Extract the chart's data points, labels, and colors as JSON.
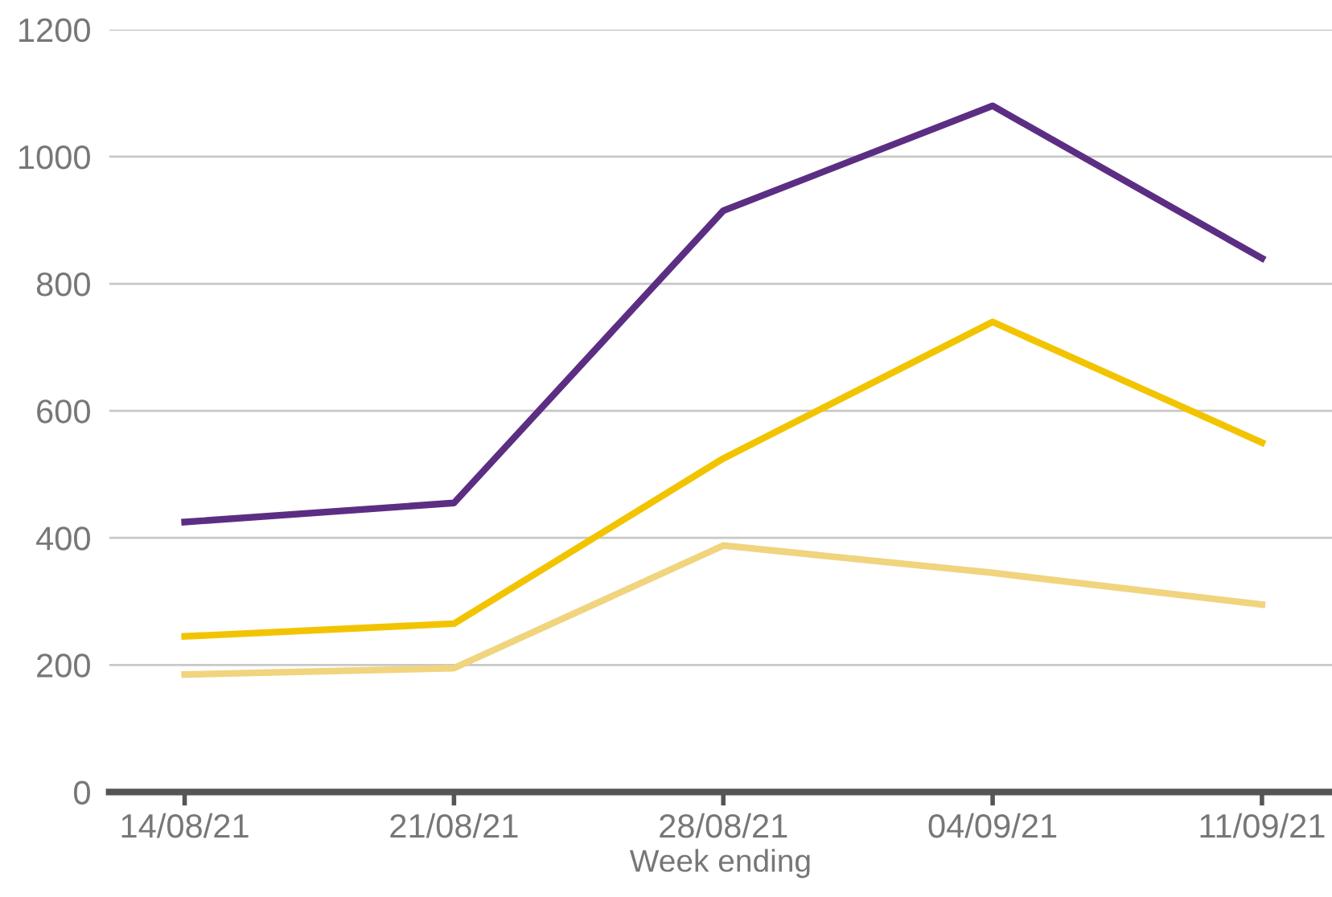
{
  "chart_data": {
    "type": "line",
    "xlabel": "Week ending",
    "categories": [
      "14/08/21",
      "21/08/21",
      "28/08/21",
      "04/09/21",
      "11/09/21"
    ],
    "series": [
      {
        "color": "#5c2e83",
        "values": [
          425,
          455,
          915,
          1080,
          840
        ]
      },
      {
        "color": "#f2c400",
        "values": [
          245,
          265,
          525,
          740,
          550
        ]
      },
      {
        "color": "#f0d47e",
        "values": [
          185,
          195,
          388,
          345,
          295
        ]
      }
    ],
    "ylim": [
      0,
      1200
    ],
    "yticks": [
      0,
      200,
      400,
      600,
      800,
      1000,
      1200
    ],
    "grid": "y",
    "marker": "none",
    "line_style": "solid"
  }
}
